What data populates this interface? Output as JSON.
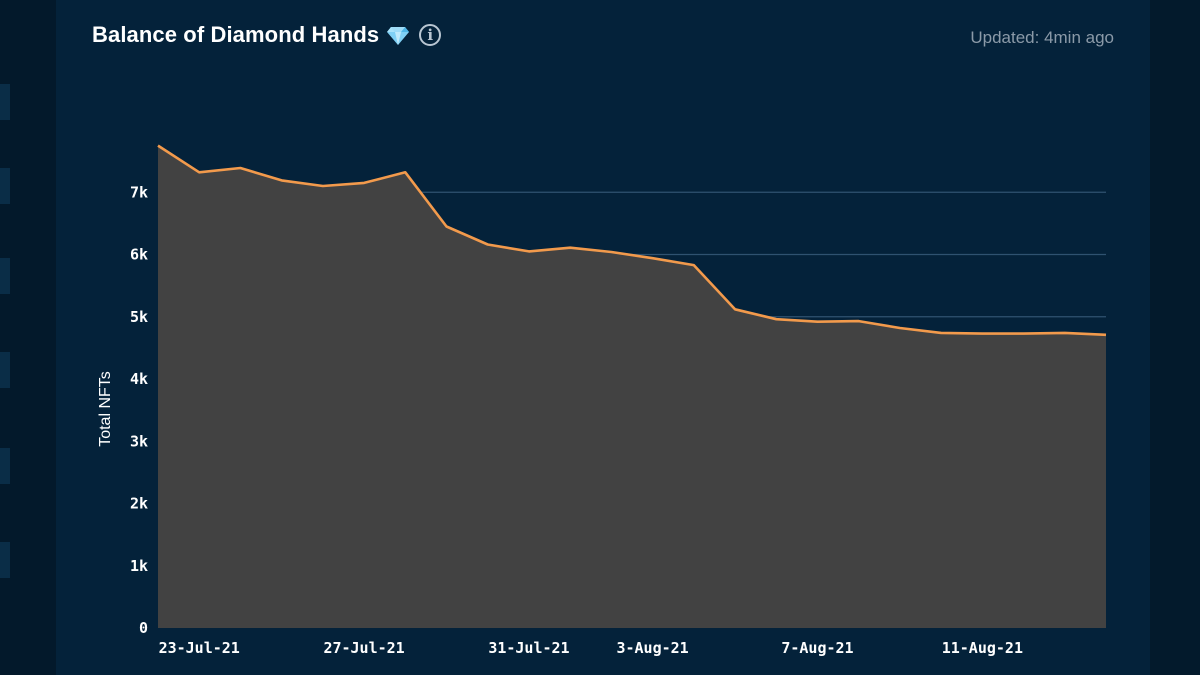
{
  "header": {
    "title": "Balance of Diamond Hands",
    "title_emoji_icon": "gem-icon",
    "info_icon": "info-icon",
    "updated": "Updated: 4min ago"
  },
  "colors": {
    "background": "#031b2e",
    "panel": "#04223a",
    "area_fill": "#424242",
    "line": "#f29a4c",
    "grid": "#2f5270",
    "text": "#ffffff",
    "muted_text": "#8b9aa8"
  },
  "chart_data": {
    "type": "area",
    "title": "Balance of Diamond Hands",
    "ylabel": "Total NFTs",
    "xlabel": "",
    "ylim": [
      0,
      8000
    ],
    "yticks": [
      0,
      1000,
      2000,
      3000,
      4000,
      5000,
      6000,
      7000
    ],
    "ytick_labels": [
      "0",
      "1k",
      "2k",
      "3k",
      "4k",
      "5k",
      "6k",
      "7k"
    ],
    "xtick_labels": [
      {
        "label": "23-Jul-21",
        "date": "23-Jul-21"
      },
      {
        "label": "27-Jul-21",
        "date": "27-Jul-21"
      },
      {
        "label": "31-Jul-21",
        "date": "31-Jul-21"
      },
      {
        "label": "3-Aug-21",
        "date": "3-Aug-21"
      },
      {
        "label": "7-Aug-21",
        "date": "7-Aug-21"
      },
      {
        "label": "11-Aug-21",
        "date": "11-Aug-21"
      }
    ],
    "grid": true,
    "x": [
      "22-Jul-21",
      "23-Jul-21",
      "24-Jul-21",
      "25-Jul-21",
      "26-Jul-21",
      "27-Jul-21",
      "28-Jul-21",
      "29-Jul-21",
      "30-Jul-21",
      "31-Jul-21",
      "1-Aug-21",
      "2-Aug-21",
      "3-Aug-21",
      "4-Aug-21",
      "5-Aug-21",
      "6-Aug-21",
      "7-Aug-21",
      "8-Aug-21",
      "9-Aug-21",
      "10-Aug-21",
      "11-Aug-21",
      "12-Aug-21",
      "13-Aug-21",
      "14-Aug-21"
    ],
    "values": [
      7750,
      7320,
      7390,
      7190,
      7100,
      7150,
      7320,
      6450,
      6160,
      6050,
      6110,
      6040,
      5940,
      5830,
      5120,
      4960,
      4920,
      4930,
      4820,
      4740,
      4730,
      4730,
      4740,
      4710
    ]
  }
}
